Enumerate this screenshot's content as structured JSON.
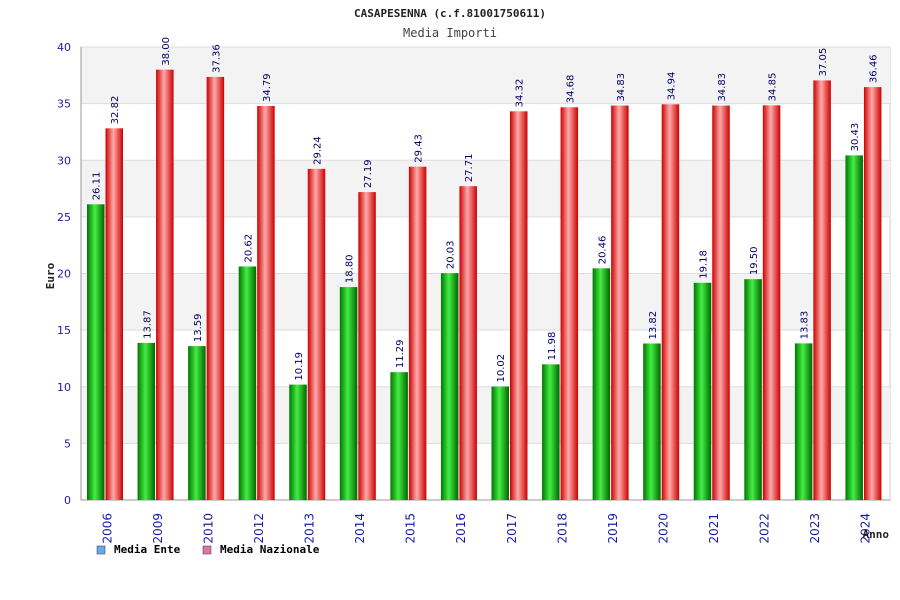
{
  "chart_data": {
    "type": "bar",
    "title": "CASAPESENNA (c.f.81001750611)",
    "subtitle": "Media Importi",
    "xlabel": "Anno",
    "ylabel": "Euro",
    "ylim": [
      0,
      40
    ],
    "yticks": [
      0,
      5,
      10,
      15,
      20,
      25,
      30,
      35,
      40
    ],
    "grid": true,
    "legend_position": "bottom-left",
    "categories": [
      "2006",
      "2009",
      "2010",
      "2012",
      "2013",
      "2014",
      "2015",
      "2016",
      "2017",
      "2018",
      "2019",
      "2020",
      "2021",
      "2022",
      "2023",
      "2024"
    ],
    "series": [
      {
        "name": "Media Ente",
        "color": "#00aa00",
        "legend_color": "#66aaee",
        "values": [
          26.11,
          13.87,
          13.59,
          20.62,
          10.19,
          18.8,
          11.29,
          20.03,
          10.02,
          11.98,
          20.46,
          13.82,
          19.18,
          19.5,
          13.83,
          30.43
        ],
        "labels": [
          "26.11",
          "13.87",
          "13.59",
          "20.62",
          "10.19",
          "18.80",
          "11.29",
          "20.03",
          "10.02",
          "11.98",
          "20.46",
          "13.82",
          "19.18",
          "19.50",
          "13.83",
          "30.43"
        ]
      },
      {
        "name": "Media Nazionale",
        "color": "#ee1111",
        "legend_color": "#dd77aa",
        "values": [
          32.82,
          38.0,
          37.36,
          34.79,
          29.24,
          27.19,
          29.43,
          27.71,
          34.32,
          34.68,
          34.83,
          34.94,
          34.83,
          34.85,
          37.05,
          36.46
        ],
        "labels": [
          "32.82",
          "38.00",
          "37.36",
          "34.79",
          "29.24",
          "27.19",
          "29.43",
          "27.71",
          "34.32",
          "34.68",
          "34.83",
          "34.94",
          "34.83",
          "34.85",
          "37.05",
          "36.46"
        ]
      }
    ]
  },
  "colors": {
    "title_text": "#222222",
    "subtitle_text": "#444444",
    "axis_text": "#1a1aaa",
    "data_label": "#000066",
    "grid": "#dddddd",
    "band": "#f3f3f3"
  }
}
